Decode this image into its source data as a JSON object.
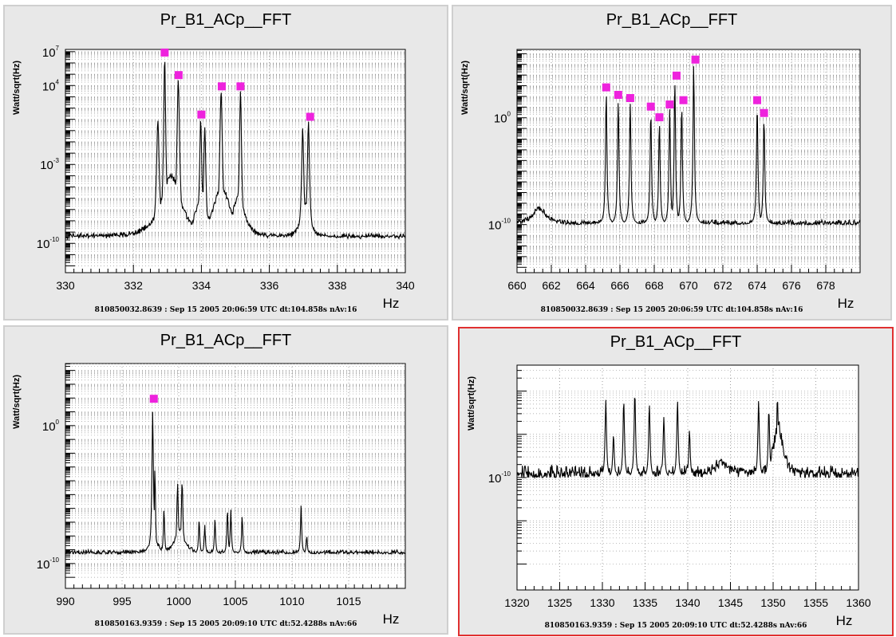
{
  "panels": [
    {
      "title": "Pr_B1_ACp__FFT",
      "footer": "810850032.8639 : Sep 15 2005 20:06:59 UTC dt:104.858s nAv:16",
      "active": false
    },
    {
      "title": "Pr_B1_ACp__FFT",
      "footer": "810850032.8639 : Sep 15 2005 20:06:59 UTC dt:104.858s nAv:16",
      "active": false
    },
    {
      "title": "Pr_B1_ACp__FFT",
      "footer": "810850163.9359 : Sep 15 2005 20:09:10 UTC dt:52.4288s nAv:66",
      "active": false
    },
    {
      "title": "Pr_B1_ACp__FFT",
      "footer": "810850163.9359 : Sep 15 2005 20:09:10 UTC dt:52.4288s nAv:66",
      "active": true
    }
  ],
  "colors": {
    "trace": "#000000",
    "marker": "#ee22dd",
    "active_border": "#e03030",
    "background": "#e8e8e8"
  },
  "chart_data": [
    {
      "type": "line",
      "title": "Pr_B1_ACp__FFT",
      "xlabel": "Hz",
      "ylabel": "Watt/sqrt(Hz)",
      "xlim": [
        330,
        340
      ],
      "xticks": [
        330,
        332,
        334,
        336,
        338,
        340
      ],
      "yscale": "log",
      "ylim": [
        -12.6,
        7.2
      ],
      "yticks": [
        {
          "value": -10,
          "label": "10^-10"
        },
        {
          "value": -3,
          "label": "10^-3"
        },
        {
          "value": 4,
          "label": "10^4"
        },
        {
          "value": 7,
          "label": "10^7"
        }
      ],
      "grid": true,
      "baseline": -9.6,
      "noise": 0.5,
      "peaks": [
        {
          "x": 332.72,
          "y": 0.9,
          "w": 0.05
        },
        {
          "x": 332.92,
          "y": 6.5,
          "w": 0.04
        },
        {
          "x": 333.32,
          "y": 4.5,
          "w": 0.05
        },
        {
          "x": 333.98,
          "y": 1.0,
          "w": 0.04
        },
        {
          "x": 334.1,
          "y": 0.3,
          "w": 0.04
        },
        {
          "x": 334.58,
          "y": 3.5,
          "w": 0.05
        },
        {
          "x": 335.15,
          "y": 3.5,
          "w": 0.04
        },
        {
          "x": 336.98,
          "y": 0.2,
          "w": 0.04
        },
        {
          "x": 337.15,
          "y": 0.8,
          "w": 0.04
        }
      ],
      "humps": [
        {
          "x": 333.1,
          "y": -4.0,
          "w": 0.35
        },
        {
          "x": 334.0,
          "y": -5.5,
          "w": 0.2
        },
        {
          "x": 334.6,
          "y": -5.0,
          "w": 0.3
        },
        {
          "x": 335.1,
          "y": -5.5,
          "w": 0.2
        },
        {
          "x": 337.05,
          "y": -6.5,
          "w": 0.15
        }
      ],
      "markers": [
        {
          "x": 332.92,
          "y": 6.5
        },
        {
          "x": 333.33,
          "y": 4.5
        },
        {
          "x": 334.0,
          "y": 1.0
        },
        {
          "x": 334.6,
          "y": 3.5
        },
        {
          "x": 335.15,
          "y": 3.5
        },
        {
          "x": 337.2,
          "y": 0.8
        }
      ]
    },
    {
      "type": "line",
      "title": "Pr_B1_ACp__FFT",
      "xlabel": "Hz",
      "ylabel": "Watt/sqrt(Hz)",
      "xlim": [
        660,
        680
      ],
      "xticks": [
        660,
        662,
        664,
        666,
        668,
        670,
        672,
        674,
        676,
        678
      ],
      "yscale": "log",
      "ylim": [
        -14.5,
        6.4
      ],
      "yticks": [
        {
          "value": -10,
          "label": "10^-10"
        },
        {
          "value": 0,
          "label": "10^0"
        }
      ],
      "grid": true,
      "baseline": -10.0,
      "noise": 0.45,
      "peaks": [
        {
          "x": 665.2,
          "y": 2.4,
          "w": 0.05
        },
        {
          "x": 665.9,
          "y": 1.7,
          "w": 0.05
        },
        {
          "x": 666.6,
          "y": 1.4,
          "w": 0.05
        },
        {
          "x": 667.8,
          "y": 0.6,
          "w": 0.05
        },
        {
          "x": 668.3,
          "y": -0.4,
          "w": 0.05
        },
        {
          "x": 668.9,
          "y": 0.8,
          "w": 0.05
        },
        {
          "x": 669.2,
          "y": 3.5,
          "w": 0.05
        },
        {
          "x": 669.6,
          "y": 1.2,
          "w": 0.05
        },
        {
          "x": 670.3,
          "y": 5.0,
          "w": 0.05
        },
        {
          "x": 674.0,
          "y": 1.2,
          "w": 0.05
        },
        {
          "x": 674.4,
          "y": 0.0,
          "w": 0.05
        }
      ],
      "humps": [
        {
          "x": 661.3,
          "y": -8.5,
          "w": 0.5
        }
      ],
      "markers": [
        {
          "x": 665.2,
          "y": 2.4
        },
        {
          "x": 665.9,
          "y": 1.7
        },
        {
          "x": 666.6,
          "y": 1.4
        },
        {
          "x": 667.8,
          "y": 0.6
        },
        {
          "x": 668.3,
          "y": -0.4
        },
        {
          "x": 668.9,
          "y": 0.8
        },
        {
          "x": 669.3,
          "y": 3.5
        },
        {
          "x": 669.7,
          "y": 1.2
        },
        {
          "x": 670.4,
          "y": 5.0
        },
        {
          "x": 674.0,
          "y": 1.2
        },
        {
          "x": 674.4,
          "y": 0.0
        }
      ]
    },
    {
      "type": "line",
      "title": "Pr_B1_ACp__FFT",
      "xlabel": "Hz",
      "ylabel": "Watt/sqrt(Hz)",
      "xlim": [
        990,
        1020
      ],
      "xticks": [
        990,
        995,
        1000,
        1005,
        1010,
        1015
      ],
      "yscale": "log",
      "ylim": [
        -11.8,
        4.5
      ],
      "yticks": [
        {
          "value": -10,
          "label": "10^-10"
        },
        {
          "value": 0,
          "label": "10^0"
        }
      ],
      "grid": true,
      "baseline": -9.3,
      "noise": 0.3,
      "peaks": [
        {
          "x": 997.7,
          "y": 1.0,
          "w": 0.08
        },
        {
          "x": 997.9,
          "y": -3.0,
          "w": 0.06
        },
        {
          "x": 998.7,
          "y": -6.0,
          "w": 0.06
        },
        {
          "x": 999.9,
          "y": -4.2,
          "w": 0.08
        },
        {
          "x": 1000.3,
          "y": -4.0,
          "w": 0.08
        },
        {
          "x": 1001.8,
          "y": -6.8,
          "w": 0.06
        },
        {
          "x": 1002.3,
          "y": -7.2,
          "w": 0.06
        },
        {
          "x": 1003.2,
          "y": -6.8,
          "w": 0.06
        },
        {
          "x": 1004.3,
          "y": -6.0,
          "w": 0.06
        },
        {
          "x": 1004.6,
          "y": -6.1,
          "w": 0.06
        },
        {
          "x": 1005.6,
          "y": -6.5,
          "w": 0.06
        },
        {
          "x": 1010.8,
          "y": -5.8,
          "w": 0.06
        },
        {
          "x": 1011.3,
          "y": -8.0,
          "w": 0.06
        }
      ],
      "humps": [
        {
          "x": 997.8,
          "y": -8.0,
          "w": 0.4
        },
        {
          "x": 1000.1,
          "y": -7.5,
          "w": 0.5
        }
      ],
      "markers": [
        {
          "x": 997.8,
          "y": 1.6
        }
      ]
    },
    {
      "type": "line",
      "title": "Pr_B1_ACp__FFT",
      "xlabel": "Hz",
      "ylabel": "Watt/sqrt(Hz)",
      "xlim": [
        1320,
        1360
      ],
      "xticks": [
        1320,
        1325,
        1330,
        1335,
        1340,
        1345,
        1350,
        1355,
        1360
      ],
      "yscale": "log",
      "ylim": [
        -12.6,
        -7.4
      ],
      "yticks": [
        {
          "value": -10,
          "label": "10^-10"
        }
      ],
      "grid": true,
      "baseline": -10.0,
      "noise": 0.28,
      "peaks": [
        {
          "x": 1330.4,
          "y": -8.2,
          "w": 0.1
        },
        {
          "x": 1331.3,
          "y": -9.0,
          "w": 0.1
        },
        {
          "x": 1332.5,
          "y": -8.2,
          "w": 0.1
        },
        {
          "x": 1333.8,
          "y": -8.0,
          "w": 0.1
        },
        {
          "x": 1335.5,
          "y": -8.3,
          "w": 0.1
        },
        {
          "x": 1337.2,
          "y": -8.6,
          "w": 0.1
        },
        {
          "x": 1338.8,
          "y": -8.2,
          "w": 0.1
        },
        {
          "x": 1340.2,
          "y": -8.9,
          "w": 0.1
        },
        {
          "x": 1348.3,
          "y": -8.2,
          "w": 0.1
        },
        {
          "x": 1349.5,
          "y": -8.4,
          "w": 0.1
        },
        {
          "x": 1350.5,
          "y": -8.1,
          "w": 0.1
        }
      ],
      "humps": [
        {
          "x": 1350.6,
          "y": -8.8,
          "w": 0.7
        },
        {
          "x": 1344.0,
          "y": -9.65,
          "w": 1.2
        }
      ],
      "markers": []
    }
  ]
}
